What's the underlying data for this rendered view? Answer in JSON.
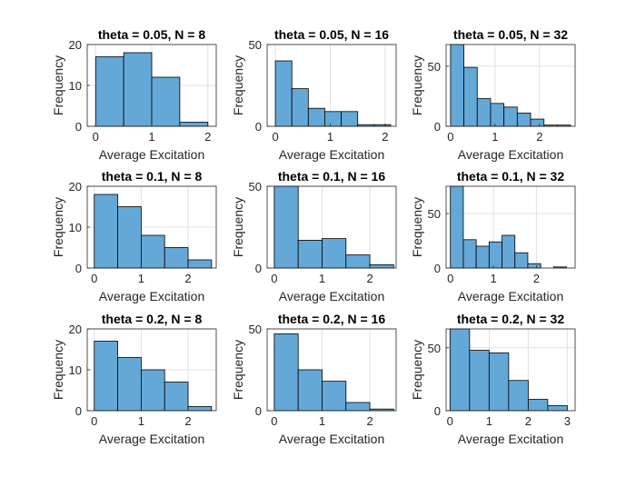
{
  "figure": {
    "background": "#ffffff",
    "bar_color": "#64a8d8",
    "edge_color": "#000000",
    "grid_color": "#e0e0e0"
  },
  "chart_data": [
    {
      "type": "bar",
      "title": "theta = 0.05, N = 8",
      "xlabel": "Average Excitation",
      "ylabel": "Frequency",
      "xlim": [
        -0.15,
        2.15
      ],
      "ylim": [
        0,
        20
      ],
      "xticks": [
        0,
        1,
        2
      ],
      "yticks": [
        0,
        10,
        20
      ],
      "grid": true,
      "bins": [
        {
          "x0": 0,
          "x1": 0.5,
          "value": 17
        },
        {
          "x0": 0.5,
          "x1": 1.0,
          "value": 18
        },
        {
          "x0": 1.0,
          "x1": 1.5,
          "value": 12
        },
        {
          "x0": 1.5,
          "x1": 2.0,
          "value": 1
        }
      ]
    },
    {
      "type": "bar",
      "title": "theta = 0.05, N = 16",
      "xlabel": "Average Excitation",
      "ylabel": "Frequency",
      "xlim": [
        -0.15,
        2.2
      ],
      "ylim": [
        0,
        50
      ],
      "xticks": [
        0,
        1,
        2
      ],
      "yticks": [
        0,
        50
      ],
      "grid": true,
      "bins": [
        {
          "x0": 0,
          "x1": 0.3,
          "value": 40
        },
        {
          "x0": 0.3,
          "x1": 0.6,
          "value": 23
        },
        {
          "x0": 0.6,
          "x1": 0.9,
          "value": 11
        },
        {
          "x0": 0.9,
          "x1": 1.2,
          "value": 9
        },
        {
          "x0": 1.2,
          "x1": 1.5,
          "value": 9
        },
        {
          "x0": 1.5,
          "x1": 1.8,
          "value": 1
        },
        {
          "x0": 1.8,
          "x1": 2.1,
          "value": 1
        }
      ]
    },
    {
      "type": "bar",
      "title": "theta = 0.05, N = 32",
      "xlabel": "Average Excitation",
      "ylabel": "Frequency",
      "xlim": [
        -0.1,
        2.8
      ],
      "ylim": [
        0,
        68
      ],
      "xticks": [
        0,
        1,
        2
      ],
      "yticks": [
        0,
        50
      ],
      "grid": true,
      "bins": [
        {
          "x0": 0,
          "x1": 0.3,
          "value": 68
        },
        {
          "x0": 0.3,
          "x1": 0.6,
          "value": 49
        },
        {
          "x0": 0.6,
          "x1": 0.9,
          "value": 23
        },
        {
          "x0": 0.9,
          "x1": 1.2,
          "value": 19
        },
        {
          "x0": 1.2,
          "x1": 1.5,
          "value": 16
        },
        {
          "x0": 1.5,
          "x1": 1.8,
          "value": 11
        },
        {
          "x0": 1.8,
          "x1": 2.1,
          "value": 6
        },
        {
          "x0": 2.1,
          "x1": 2.4,
          "value": 1
        },
        {
          "x0": 2.4,
          "x1": 2.7,
          "value": 1
        }
      ]
    },
    {
      "type": "bar",
      "title": "theta = 0.1, N = 8",
      "xlabel": "Average Excitation",
      "ylabel": "Frequency",
      "xlim": [
        -0.15,
        2.6
      ],
      "ylim": [
        0,
        20
      ],
      "xticks": [
        0,
        1,
        2
      ],
      "yticks": [
        0,
        10,
        20
      ],
      "grid": true,
      "bins": [
        {
          "x0": 0,
          "x1": 0.5,
          "value": 18
        },
        {
          "x0": 0.5,
          "x1": 1.0,
          "value": 15
        },
        {
          "x0": 1.0,
          "x1": 1.5,
          "value": 8
        },
        {
          "x0": 1.5,
          "x1": 2.0,
          "value": 5
        },
        {
          "x0": 2.0,
          "x1": 2.5,
          "value": 2
        }
      ]
    },
    {
      "type": "bar",
      "title": "theta = 0.1, N = 16",
      "xlabel": "Average Excitation",
      "ylabel": "Frequency",
      "xlim": [
        -0.15,
        2.55
      ],
      "ylim": [
        0,
        50
      ],
      "xticks": [
        0,
        1,
        2
      ],
      "yticks": [
        0,
        50
      ],
      "grid": true,
      "bins": [
        {
          "x0": 0,
          "x1": 0.5,
          "value": 50
        },
        {
          "x0": 0.5,
          "x1": 1.0,
          "value": 17
        },
        {
          "x0": 1.0,
          "x1": 1.5,
          "value": 18
        },
        {
          "x0": 1.5,
          "x1": 2.0,
          "value": 8
        },
        {
          "x0": 2.0,
          "x1": 2.5,
          "value": 2
        }
      ]
    },
    {
      "type": "bar",
      "title": "theta = 0.1, N = 32",
      "xlabel": "Average Excitation",
      "ylabel": "Frequency",
      "xlim": [
        -0.1,
        2.9
      ],
      "ylim": [
        0,
        75
      ],
      "xticks": [
        0,
        1,
        2
      ],
      "yticks": [
        0,
        50
      ],
      "grid": true,
      "bins": [
        {
          "x0": 0,
          "x1": 0.3,
          "value": 75
        },
        {
          "x0": 0.3,
          "x1": 0.6,
          "value": 26
        },
        {
          "x0": 0.6,
          "x1": 0.9,
          "value": 20
        },
        {
          "x0": 0.9,
          "x1": 1.2,
          "value": 24
        },
        {
          "x0": 1.2,
          "x1": 1.5,
          "value": 30
        },
        {
          "x0": 1.5,
          "x1": 1.8,
          "value": 14
        },
        {
          "x0": 1.8,
          "x1": 2.1,
          "value": 4
        },
        {
          "x0": 2.1,
          "x1": 2.4,
          "value": 0
        },
        {
          "x0": 2.4,
          "x1": 2.7,
          "value": 1
        }
      ]
    },
    {
      "type": "bar",
      "title": "theta = 0.2, N = 8",
      "xlabel": "Average Excitation",
      "ylabel": "Frequency",
      "xlim": [
        -0.15,
        2.6
      ],
      "ylim": [
        0,
        20
      ],
      "xticks": [
        0,
        1,
        2
      ],
      "yticks": [
        0,
        10,
        20
      ],
      "grid": true,
      "bins": [
        {
          "x0": 0,
          "x1": 0.5,
          "value": 17
        },
        {
          "x0": 0.5,
          "x1": 1.0,
          "value": 13
        },
        {
          "x0": 1.0,
          "x1": 1.5,
          "value": 10
        },
        {
          "x0": 1.5,
          "x1": 2.0,
          "value": 7
        },
        {
          "x0": 2.0,
          "x1": 2.5,
          "value": 1
        }
      ]
    },
    {
      "type": "bar",
      "title": "theta = 0.2, N = 16",
      "xlabel": "Average Excitation",
      "ylabel": "Frequency",
      "xlim": [
        -0.15,
        2.55
      ],
      "ylim": [
        0,
        50
      ],
      "xticks": [
        0,
        1,
        2
      ],
      "yticks": [
        0,
        50
      ],
      "grid": true,
      "bins": [
        {
          "x0": 0,
          "x1": 0.5,
          "value": 47
        },
        {
          "x0": 0.5,
          "x1": 1.0,
          "value": 25
        },
        {
          "x0": 1.0,
          "x1": 1.5,
          "value": 18
        },
        {
          "x0": 1.5,
          "x1": 2.0,
          "value": 5
        },
        {
          "x0": 2.0,
          "x1": 2.5,
          "value": 1
        }
      ]
    },
    {
      "type": "bar",
      "title": "theta = 0.2, N = 32",
      "xlabel": "Average Excitation",
      "ylabel": "Frequency",
      "xlim": [
        -0.1,
        3.2
      ],
      "ylim": [
        0,
        65
      ],
      "xticks": [
        0,
        1,
        2,
        3
      ],
      "yticks": [
        0,
        50
      ],
      "grid": true,
      "bins": [
        {
          "x0": 0,
          "x1": 0.5,
          "value": 65
        },
        {
          "x0": 0.5,
          "x1": 1.0,
          "value": 48
        },
        {
          "x0": 1.0,
          "x1": 1.5,
          "value": 46
        },
        {
          "x0": 1.5,
          "x1": 2.0,
          "value": 24
        },
        {
          "x0": 2.0,
          "x1": 2.5,
          "value": 9
        },
        {
          "x0": 2.5,
          "x1": 3.0,
          "value": 4
        }
      ]
    }
  ]
}
